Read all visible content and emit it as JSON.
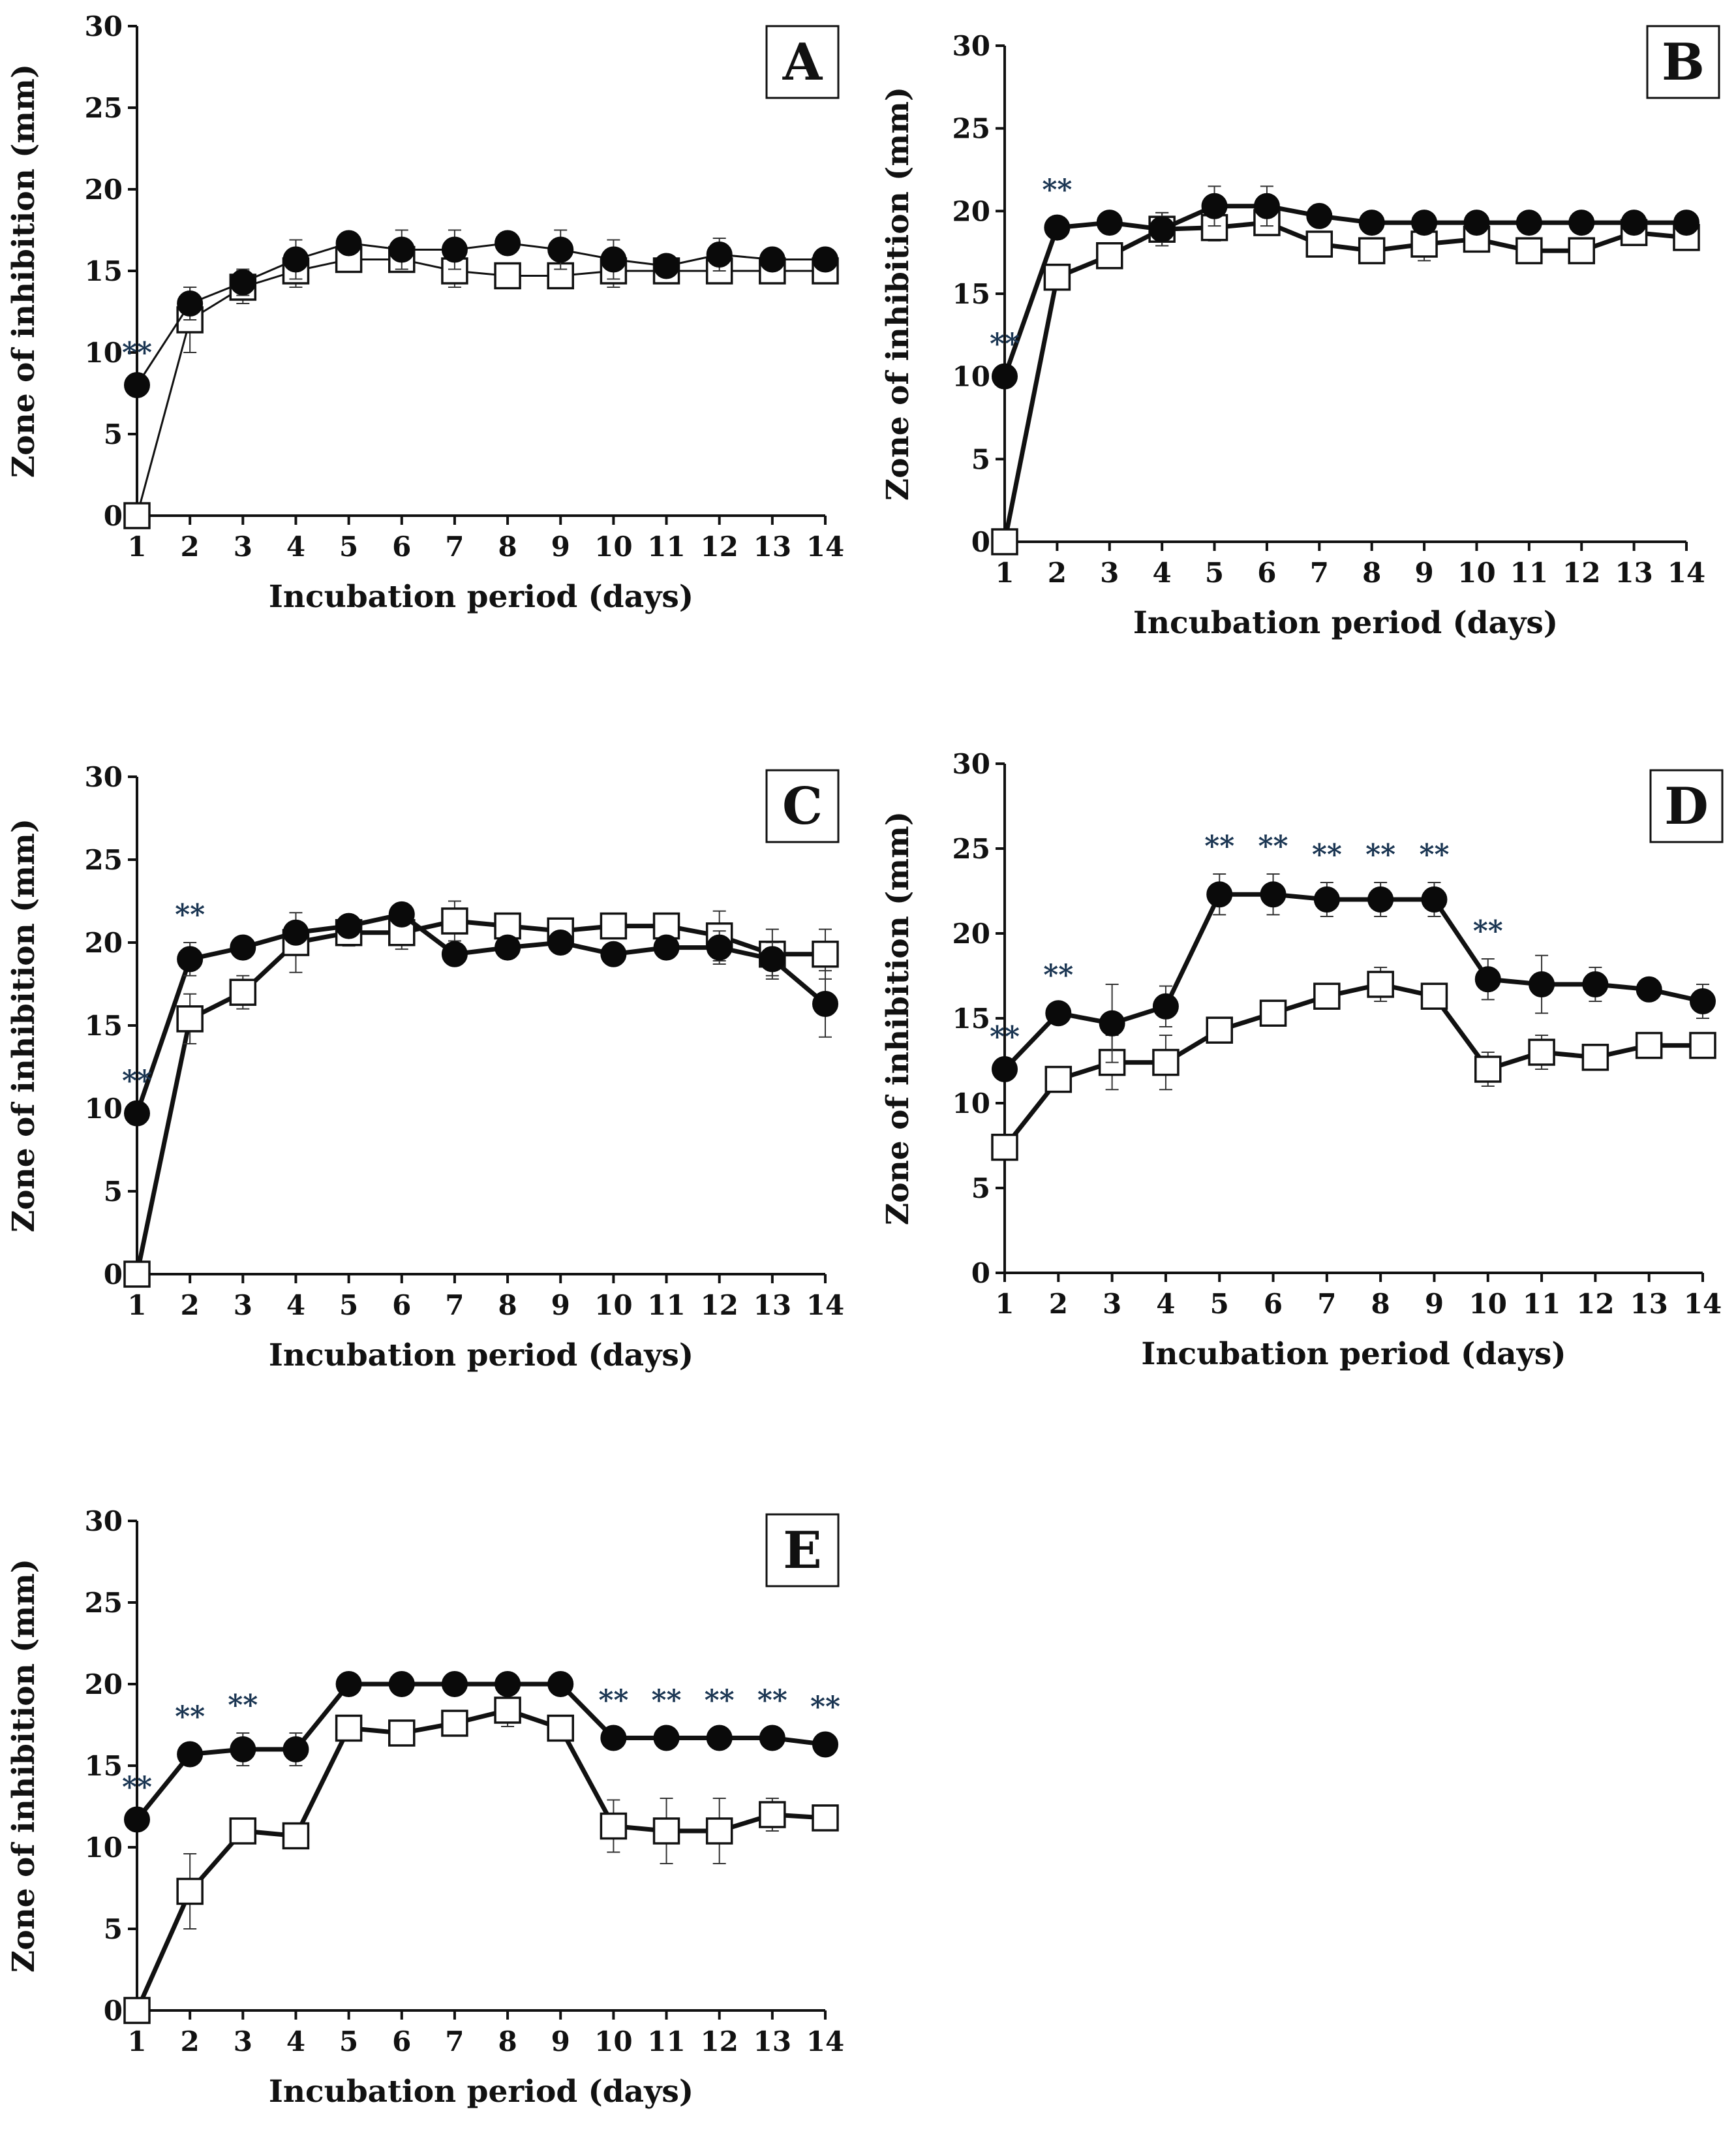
{
  "chart_data": [
    {
      "type": "line",
      "panel_label": "A",
      "xlabel": "Incubation period (days)",
      "ylabel": "Zone of inhibition (mm)",
      "x": [
        1,
        2,
        3,
        4,
        5,
        6,
        7,
        8,
        9,
        10,
        11,
        12,
        13,
        14
      ],
      "ylim": [
        0,
        30
      ],
      "yticks": [
        0,
        5,
        10,
        15,
        20,
        25,
        30
      ],
      "series": [
        {
          "name": "filled-circle",
          "marker": "circle",
          "values": [
            8,
            13,
            14.3,
            15.7,
            16.7,
            16.3,
            16.3,
            16.7,
            16.3,
            15.7,
            15.3,
            16,
            15.7,
            15.7
          ],
          "errors": [
            0,
            1,
            0.8,
            1.2,
            0.6,
            1.2,
            1.2,
            0.6,
            1.2,
            1.2,
            0.6,
            1,
            0.6,
            0.6
          ]
        },
        {
          "name": "open-square",
          "marker": "square",
          "values": [
            0,
            12,
            14,
            15,
            15.7,
            15.7,
            15,
            14.7,
            14.7,
            15,
            15,
            15,
            15,
            15
          ],
          "errors": [
            0,
            2,
            1,
            1,
            0.6,
            0.6,
            1,
            0,
            0,
            1,
            0,
            0,
            0,
            0
          ]
        }
      ],
      "significance": {
        "1": "**"
      }
    },
    {
      "type": "line",
      "panel_label": "B",
      "xlabel": "Incubation period (days)",
      "ylabel": "Zone of inhibition (mm)",
      "x": [
        1,
        2,
        3,
        4,
        5,
        6,
        7,
        8,
        9,
        10,
        11,
        12,
        13,
        14
      ],
      "ylim": [
        0,
        30
      ],
      "yticks": [
        0,
        5,
        10,
        15,
        20,
        25,
        30
      ],
      "series": [
        {
          "name": "filled-circle",
          "marker": "circle",
          "values": [
            10,
            19,
            19.3,
            18.9,
            20.3,
            20.3,
            19.7,
            19.3,
            19.3,
            19.3,
            19.3,
            19.3,
            19.3,
            19.3
          ],
          "errors": [
            0,
            0.6,
            0.6,
            1,
            1.2,
            1.2,
            0.6,
            0.6,
            0.6,
            0.6,
            0.6,
            0.6,
            0.6,
            0.6
          ]
        },
        {
          "name": "open-square",
          "marker": "square",
          "values": [
            0,
            16,
            17.3,
            18.9,
            19,
            19.3,
            18,
            17.6,
            18,
            18.3,
            17.6,
            17.6,
            18.7,
            18.4
          ],
          "errors": [
            0,
            0.5,
            0.6,
            1,
            0.8,
            0.6,
            0.6,
            0.6,
            1,
            0.6,
            0.6,
            0.6,
            0.6,
            0.6
          ]
        }
      ],
      "significance": {
        "1": "**",
        "2": "**"
      }
    },
    {
      "type": "line",
      "panel_label": "C",
      "xlabel": "Incubation period (days)",
      "ylabel": "Zone of inhibition (mm)",
      "x": [
        1,
        2,
        3,
        4,
        5,
        6,
        7,
        8,
        9,
        10,
        11,
        12,
        13,
        14
      ],
      "ylim": [
        0,
        30
      ],
      "yticks": [
        0,
        5,
        10,
        15,
        20,
        25,
        30
      ],
      "series": [
        {
          "name": "filled-circle",
          "marker": "circle",
          "values": [
            9.7,
            19,
            19.7,
            20.6,
            21,
            21.7,
            19.3,
            19.7,
            20,
            19.3,
            19.7,
            19.7,
            19,
            16.3
          ],
          "errors": [
            0,
            1,
            0.6,
            0.6,
            0.6,
            0.6,
            0.6,
            0.6,
            0.6,
            0.6,
            0.6,
            1,
            1,
            2
          ]
        },
        {
          "name": "open-square",
          "marker": "square",
          "values": [
            0,
            15.4,
            17,
            20,
            20.6,
            20.6,
            21.3,
            21,
            20.7,
            21,
            21,
            20.4,
            19.3,
            19.3
          ],
          "errors": [
            0,
            1.5,
            1,
            1.8,
            0.8,
            1,
            1.2,
            0.6,
            0.6,
            0.6,
            0.6,
            1.5,
            1.5,
            1.5
          ]
        }
      ],
      "significance": {
        "1": "**",
        "2": "**"
      }
    },
    {
      "type": "line",
      "panel_label": "D",
      "xlabel": "Incubation period (days)",
      "ylabel": "Zone of inhibition (mm)",
      "x": [
        1,
        2,
        3,
        4,
        5,
        6,
        7,
        8,
        9,
        10,
        11,
        12,
        13,
        14
      ],
      "ylim": [
        0,
        30
      ],
      "yticks": [
        0,
        5,
        10,
        15,
        20,
        25,
        30
      ],
      "series": [
        {
          "name": "filled-circle",
          "marker": "circle",
          "values": [
            12,
            15.3,
            14.7,
            15.7,
            22.3,
            22.3,
            22,
            22,
            22,
            17.3,
            17,
            17,
            16.7,
            16
          ],
          "errors": [
            0,
            0.6,
            2.3,
            1.2,
            1.2,
            1.2,
            1,
            1,
            1,
            1.2,
            1.7,
            1,
            0.6,
            1
          ]
        },
        {
          "name": "open-square",
          "marker": "square",
          "values": [
            7.4,
            11.4,
            12.4,
            12.4,
            14.3,
            15.3,
            16.3,
            17,
            16.3,
            12,
            13,
            12.7,
            13.4,
            13.4
          ],
          "errors": [
            0,
            0.6,
            1.6,
            1.6,
            0.6,
            0.6,
            0.6,
            1,
            0.6,
            1,
            1,
            0.6,
            0.6,
            0.6
          ]
        }
      ],
      "significance": {
        "1": "**",
        "2": "**",
        "5": "**",
        "6": "**",
        "7": "**",
        "8": "**",
        "9": "**",
        "10": "**"
      }
    },
    {
      "type": "line",
      "panel_label": "E",
      "xlabel": "Incubation period (days)",
      "ylabel": "Zone of inhibition (mm)",
      "x": [
        1,
        2,
        3,
        4,
        5,
        6,
        7,
        8,
        9,
        10,
        11,
        12,
        13,
        14
      ],
      "ylim": [
        0,
        30
      ],
      "yticks": [
        0,
        5,
        10,
        15,
        20,
        25,
        30
      ],
      "series": [
        {
          "name": "filled-circle",
          "marker": "circle",
          "values": [
            11.7,
            15.7,
            16,
            16,
            20,
            20,
            20,
            20,
            20,
            16.7,
            16.7,
            16.7,
            16.7,
            16.3
          ],
          "errors": [
            0,
            0.6,
            1,
            1,
            0,
            0,
            0,
            0,
            0,
            0.6,
            0.6,
            0.6,
            0.6,
            0.6
          ]
        },
        {
          "name": "open-square",
          "marker": "square",
          "values": [
            0,
            7.3,
            11,
            10.7,
            17.3,
            17,
            17.6,
            18.4,
            17.3,
            11.3,
            11,
            11,
            12,
            11.8
          ],
          "errors": [
            0,
            2.3,
            0.6,
            0.6,
            0.6,
            0.6,
            0.6,
            1,
            0.6,
            1.6,
            2,
            2,
            1,
            0.6
          ]
        }
      ],
      "significance": {
        "1": "**",
        "2": "**",
        "3": "**",
        "10": "**",
        "11": "**",
        "12": "**",
        "13": "**",
        "14": "**"
      }
    }
  ]
}
